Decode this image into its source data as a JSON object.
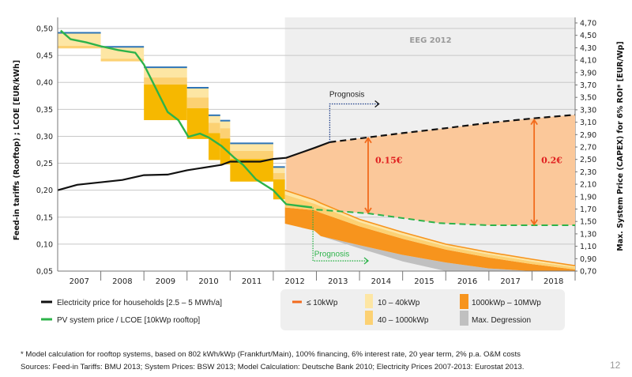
{
  "chart_data": {
    "type": "line",
    "region_label": "EEG 2012",
    "left_ylabel": "Feed-in tariffs (Rooftop) ; LCOE [EUR/kWh]",
    "right_ylabel": "Max. System Price (CAPEX) for 6% ROI* [EUR/Wp]",
    "left_ylim": [
      0.05,
      0.5
    ],
    "right_ylim": [
      0.7,
      4.7
    ],
    "xlim": [
      2007,
      2019
    ],
    "left_ticks": [
      "0,05",
      "0,10",
      "0,15",
      "0,20",
      "0,25",
      "0,30",
      "0,35",
      "0,40",
      "0,45",
      "0,50"
    ],
    "right_ticks": [
      "0,70",
      "0,90",
      "1,10",
      "1,30",
      "1,50",
      "1,70",
      "1,90",
      "2,10",
      "2,30",
      "2,50",
      "2,70",
      "2,90",
      "3,10",
      "3,30",
      "3,50",
      "3,70",
      "3,90",
      "4,10",
      "4,30",
      "4,50",
      "4,70"
    ],
    "x_categories": [
      "2007",
      "2008",
      "2009",
      "2010",
      "2011",
      "2012",
      "2013",
      "2014",
      "2015",
      "2016",
      "2017",
      "2018"
    ],
    "eeg_region_start": 2012.27,
    "series": {
      "electricity_price": {
        "name": "Electricity price for households [2.5 – 5 MWh/a]",
        "color": "#111111",
        "x": [
          2007.0,
          2007.45,
          2008.5,
          2009.0,
          2009.55,
          2010.0,
          2010.8,
          2011.0,
          2011.7,
          2012.0,
          2012.3,
          2012.97,
          2013.31
        ],
        "y": [
          0.2,
          0.21,
          0.219,
          0.228,
          0.229,
          0.237,
          0.247,
          0.253,
          0.253,
          0.258,
          0.26,
          0.279,
          0.289
        ]
      },
      "electricity_price_prognosis": {
        "x": [
          2013.31,
          2014.2,
          2015,
          2016,
          2017,
          2018,
          2019
        ],
        "y": [
          0.289,
          0.298,
          0.306,
          0.315,
          0.325,
          0.333,
          0.34
        ]
      },
      "pv_price": {
        "name": "PV system price / LCOE [10kWp rooftop]",
        "color": "#2db34a",
        "x": [
          2007.07,
          2007.3,
          2007.67,
          2008.0,
          2008.4,
          2008.8,
          2009.0,
          2009.55,
          2009.8,
          2010.03,
          2010.3,
          2010.5,
          2010.8,
          2011.1,
          2011.3,
          2011.6,
          2012.0,
          2012.3,
          2012.9
        ],
        "y": [
          0.496,
          0.48,
          0.474,
          0.467,
          0.46,
          0.455,
          0.433,
          0.345,
          0.33,
          0.299,
          0.305,
          0.298,
          0.282,
          0.26,
          0.247,
          0.22,
          0.2,
          0.174,
          0.168
        ]
      },
      "pv_price_prognosis": {
        "x": [
          2013.0,
          2014.2,
          2015.85,
          2017.0,
          2019.0
        ],
        "y": [
          0.164,
          0.157,
          0.139,
          0.135,
          0.135
        ]
      }
    },
    "fit_steps": [
      {
        "x0": 2007.0,
        "x1": 2008.0,
        "levels": [
          0.492,
          0.468,
          0.463,
          0.463
        ]
      },
      {
        "x0": 2008.0,
        "x1": 2009.0,
        "levels": [
          0.466,
          0.444,
          0.439,
          0.439
        ]
      },
      {
        "x0": 2009.0,
        "x1": 2010.0,
        "levels": [
          0.428,
          0.409,
          0.396,
          0.33
        ]
      },
      {
        "x0": 2010.0,
        "x1": 2010.5,
        "levels": [
          0.39,
          0.372,
          0.352,
          0.295
        ]
      },
      {
        "x0": 2010.5,
        "x1": 2010.77,
        "levels": [
          0.339,
          0.325,
          0.306,
          0.256
        ]
      },
      {
        "x0": 2010.77,
        "x1": 2011.0,
        "levels": [
          0.329,
          0.315,
          0.296,
          0.248
        ]
      },
      {
        "x0": 2011.0,
        "x1": 2012.0,
        "levels": [
          0.287,
          0.273,
          0.258,
          0.216
        ]
      },
      {
        "x0": 2012.0,
        "x1": 2012.27,
        "levels": [
          0.243,
          0.232,
          0.22,
          0.183
        ]
      }
    ],
    "fit_prognosis": {
      "x": [
        2012.27,
        2012.95,
        2013.1,
        2014,
        2015,
        2016,
        2017,
        2018,
        2019
      ],
      "top": [
        0.2,
        0.182,
        0.176,
        0.146,
        0.122,
        0.1,
        0.085,
        0.072,
        0.06
      ],
      "light_bottom": [
        0.192,
        0.175,
        0.17,
        0.141,
        0.117,
        0.096,
        0.081,
        0.068,
        0.057
      ],
      "medium_bottom": [
        0.168,
        0.163,
        0.158,
        0.133,
        0.11,
        0.09,
        0.075,
        0.063,
        0.053
      ],
      "orange_bottom": [
        0.138,
        0.125,
        0.115,
        0.098,
        0.08,
        0.066,
        0.055,
        0.05,
        0.05
      ],
      "gray_bottom": [
        0.138,
        0.125,
        0.115,
        0.092,
        0.068,
        0.05,
        0.05,
        0.05,
        0.05
      ]
    },
    "annotations": [
      {
        "text": "Prognosis",
        "kind": "electricity"
      },
      {
        "text": "Prognosis",
        "kind": "pv"
      },
      {
        "text": "0.15€",
        "x": 2014.2,
        "from": 0.298,
        "to": 0.157
      },
      {
        "text": "0.2€",
        "x": 2018.05,
        "from": 0.332,
        "to": 0.135
      }
    ],
    "legend": {
      "electricity": "Electricity price for households [2.5 – 5 MWh/a]",
      "pv": "PV system price / LCOE [10kWp rooftop]",
      "le10": "≤ 10kWp",
      "r10_40": "10 – 40kWp",
      "r40_1000": "40 – 1000kWp",
      "r1000_10M": "1000kWp – 10MWp",
      "maxdeg": "Max. Degression"
    },
    "colors": {
      "blue": "#2e75b6",
      "light": "#fde6a4",
      "medium": "#fcd173",
      "dark": "#f6b800",
      "orange": "#f7941d",
      "peach": "#fbc89a",
      "gray": "#c0c0c0",
      "region": "#efefef"
    }
  },
  "footnote": "* Model calculation for rooftop systems, based on 802 kWh/kWp (Frankfurt/Main), 100% financing, 6% interest rate, 20 year term, 2% p.a. O&M costs",
  "sources": "Sources: Feed-in Tariffs: BMU 2013; System Prices: BSW 2013; Model Calculation: Deutsche Bank 2010; Electricity Prices 2007-2013: Eurostat 2013.",
  "page_number": "12"
}
